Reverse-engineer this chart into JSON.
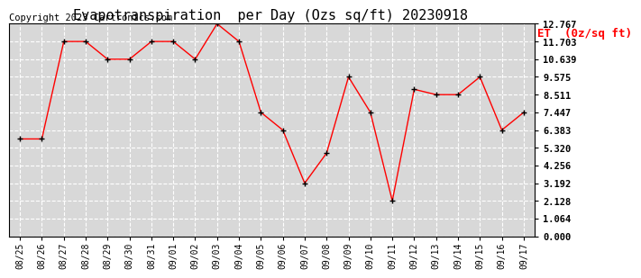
{
  "title": "Evapotranspiration  per Day (Ozs sq/ft) 20230918",
  "copyright_text": "Copyright 2023 Cartronics.com",
  "legend_label": "ET  (0z/sq ft)",
  "dates": [
    "08/25",
    "08/26",
    "08/27",
    "08/28",
    "08/29",
    "08/30",
    "08/31",
    "09/01",
    "09/02",
    "09/03",
    "09/04",
    "09/05",
    "09/06",
    "09/07",
    "09/08",
    "09/09",
    "09/10",
    "09/11",
    "09/12",
    "09/13",
    "09/14",
    "09/15",
    "09/16",
    "09/17"
  ],
  "values": [
    5.85,
    5.85,
    11.703,
    11.703,
    10.639,
    10.639,
    11.703,
    11.703,
    10.639,
    12.767,
    11.703,
    7.447,
    6.383,
    3.192,
    5.0,
    9.575,
    7.447,
    2.128,
    8.83,
    8.511,
    8.511,
    9.575,
    6.383,
    7.447
  ],
  "ylim": [
    0.0,
    12.767
  ],
  "yticks": [
    0.0,
    1.064,
    2.128,
    3.192,
    4.256,
    5.32,
    6.383,
    7.447,
    8.511,
    9.575,
    10.639,
    11.703,
    12.767
  ],
  "line_color": "red",
  "marker_color": "black",
  "marker": "+",
  "plot_bg_color": "#d8d8d8",
  "fig_bg_color": "#ffffff",
  "grid_color": "#ffffff",
  "title_fontsize": 11,
  "copyright_fontsize": 7.5,
  "legend_fontsize": 9,
  "tick_fontsize": 7,
  "ytick_fontsize": 7.5
}
